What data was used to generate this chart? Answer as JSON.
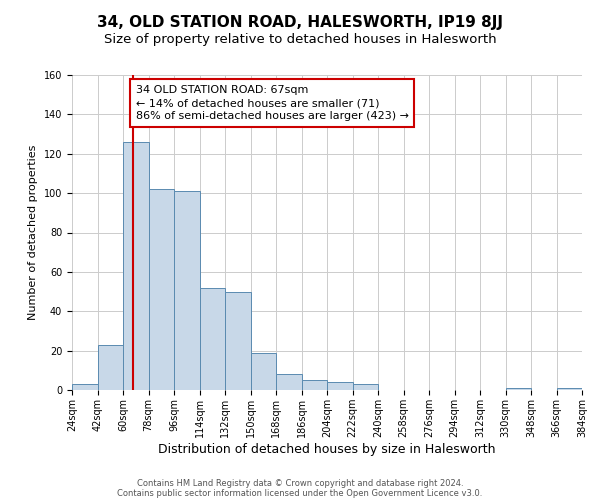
{
  "title": "34, OLD STATION ROAD, HALESWORTH, IP19 8JJ",
  "subtitle": "Size of property relative to detached houses in Halesworth",
  "xlabel": "Distribution of detached houses by size in Halesworth",
  "ylabel": "Number of detached properties",
  "bin_edges": [
    24,
    42,
    60,
    78,
    96,
    114,
    132,
    150,
    168,
    186,
    204,
    222,
    240,
    258,
    276,
    294,
    312,
    330,
    348,
    366,
    384
  ],
  "counts": [
    3,
    23,
    126,
    102,
    101,
    52,
    50,
    19,
    8,
    5,
    4,
    3,
    0,
    0,
    0,
    0,
    0,
    1,
    0,
    1
  ],
  "property_size": 67,
  "bar_color": "#c8d8e8",
  "bar_edgecolor": "#5a8ab0",
  "vline_color": "#cc0000",
  "annotation_line1": "34 OLD STATION ROAD: 67sqm",
  "annotation_line2": "← 14% of detached houses are smaller (71)",
  "annotation_line3": "86% of semi-detached houses are larger (423) →",
  "annotation_box_edgecolor": "#cc0000",
  "ylim": [
    0,
    160
  ],
  "yticks": [
    0,
    20,
    40,
    60,
    80,
    100,
    120,
    140,
    160
  ],
  "grid_color": "#cccccc",
  "background_color": "#ffffff",
  "footer_line1": "Contains HM Land Registry data © Crown copyright and database right 2024.",
  "footer_line2": "Contains public sector information licensed under the Open Government Licence v3.0.",
  "title_fontsize": 11,
  "subtitle_fontsize": 9.5,
  "tick_label_fontsize": 7,
  "ylabel_fontsize": 8,
  "xlabel_fontsize": 9,
  "annotation_fontsize": 8,
  "footer_fontsize": 6
}
